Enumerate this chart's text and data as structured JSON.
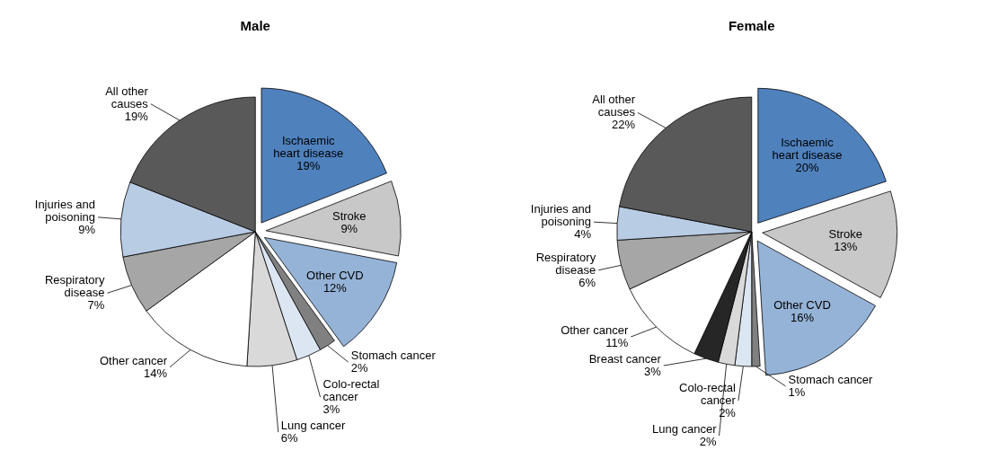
{
  "chart_data": [
    {
      "type": "pie",
      "title": "Male",
      "categories": [
        "Ischaemic heart disease",
        "Stroke",
        "Other CVD",
        "Stomach cancer",
        "Colo-rectal cancer",
        "Lung cancer",
        "Other cancer",
        "Respiratory disease",
        "Injuries and poisoning",
        "All other causes"
      ],
      "values": [
        19,
        9,
        12,
        2,
        3,
        6,
        14,
        7,
        9,
        19
      ],
      "value_labels": [
        "19%",
        "9%",
        "12%",
        "2%",
        "3%",
        "6%",
        "14%",
        "7%",
        "9%",
        "19%"
      ],
      "colors": [
        "#4f81bd",
        "#c8c8c8",
        "#95b3d7",
        "#808080",
        "#dce6f2",
        "#d9d9d9",
        "#ffffff",
        "#a6a6a6",
        "#b8cce4",
        "#595959"
      ]
    },
    {
      "type": "pie",
      "title": "Female",
      "categories": [
        "Ischaemic heart disease",
        "Stroke",
        "Other CVD",
        "Stomach cancer",
        "Colo-rectal cancer",
        "Lung cancer",
        "Breast cancer",
        "Other cancer",
        "Respiratory disease",
        "Injuries and poisoning",
        "All other causes"
      ],
      "values": [
        20,
        13,
        16,
        1,
        2,
        2,
        3,
        11,
        6,
        4,
        22
      ],
      "value_labels": [
        "20%",
        "13%",
        "16%",
        "1%",
        "2%",
        "2%",
        "3%",
        "11%",
        "6%",
        "4%",
        "22%"
      ],
      "colors": [
        "#4f81bd",
        "#c8c8c8",
        "#95b3d7",
        "#808080",
        "#dce6f2",
        "#d9d9d9",
        "#262626",
        "#ffffff",
        "#a6a6a6",
        "#b8cce4",
        "#595959"
      ]
    }
  ]
}
